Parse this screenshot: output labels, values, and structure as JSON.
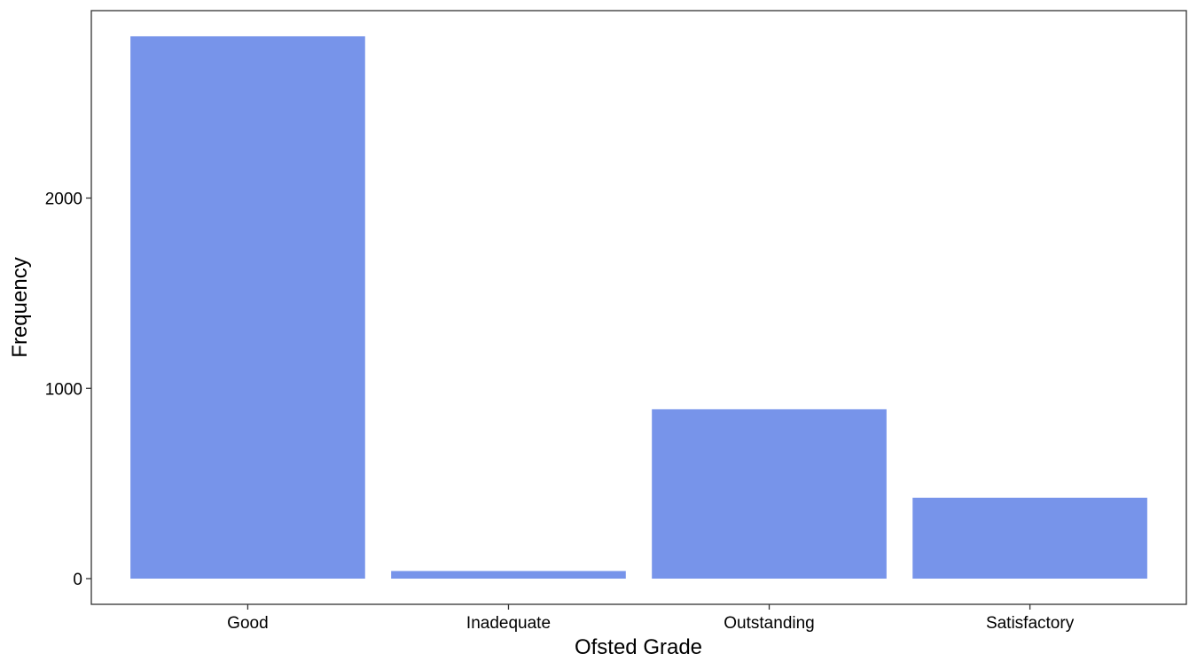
{
  "chart_data": {
    "type": "bar",
    "title": "",
    "xlabel": "Ofsted Grade",
    "ylabel": "Frequency",
    "categories": [
      "Good",
      "Inadequate",
      "Outstanding",
      "Satisfactory"
    ],
    "values": [
      2850,
      40,
      890,
      425
    ],
    "ylim": [
      -135,
      2985
    ],
    "yticks": [
      0,
      1000,
      2000
    ],
    "ytick_labels": [
      "0",
      "1000",
      "2000"
    ],
    "grid": false,
    "legend": "none",
    "bar_color": "#7794ea",
    "panel_border_color": "#333333"
  }
}
